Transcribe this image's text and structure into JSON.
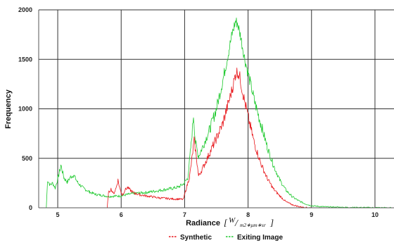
{
  "chart_data": {
    "type": "line",
    "xlabel": "Radiance",
    "xunit": {
      "W": "W",
      "denominator": "m2∗μm∗sr"
    },
    "ylabel": "Frequency",
    "xlim": [
      4.7,
      10.3
    ],
    "ylim": [
      0,
      2000
    ],
    "x_ticks": [
      5,
      6,
      7,
      8,
      9,
      10
    ],
    "y_ticks": [
      0,
      500,
      1000,
      1500,
      2000
    ],
    "grid": true,
    "legend_position": "bottom",
    "series": [
      {
        "name": "Synthetic",
        "color": "#e8161b",
        "style": "dashed",
        "points": [
          [
            5.78,
            0
          ],
          [
            5.8,
            150
          ],
          [
            5.84,
            190
          ],
          [
            5.88,
            140
          ],
          [
            5.92,
            200
          ],
          [
            5.95,
            280
          ],
          [
            5.98,
            190
          ],
          [
            6.02,
            130
          ],
          [
            6.06,
            180
          ],
          [
            6.1,
            205
          ],
          [
            6.15,
            175
          ],
          [
            6.2,
            150
          ],
          [
            6.3,
            130
          ],
          [
            6.4,
            120
          ],
          [
            6.5,
            110
          ],
          [
            6.6,
            100
          ],
          [
            6.7,
            95
          ],
          [
            6.8,
            90
          ],
          [
            6.9,
            88
          ],
          [
            6.98,
            85
          ],
          [
            7.02,
            180
          ],
          [
            7.08,
            320
          ],
          [
            7.12,
            520
          ],
          [
            7.15,
            680
          ],
          [
            7.18,
            540
          ],
          [
            7.22,
            320
          ],
          [
            7.3,
            420
          ],
          [
            7.4,
            560
          ],
          [
            7.5,
            700
          ],
          [
            7.6,
            850
          ],
          [
            7.7,
            1080
          ],
          [
            7.75,
            1200
          ],
          [
            7.8,
            1340
          ],
          [
            7.83,
            1380
          ],
          [
            7.87,
            1320
          ],
          [
            7.92,
            1150
          ],
          [
            8.0,
            920
          ],
          [
            8.1,
            650
          ],
          [
            8.2,
            450
          ],
          [
            8.3,
            300
          ],
          [
            8.4,
            190
          ],
          [
            8.5,
            120
          ],
          [
            8.6,
            60
          ],
          [
            8.7,
            30
          ],
          [
            8.8,
            12
          ],
          [
            8.9,
            4
          ],
          [
            9.0,
            0
          ]
        ]
      },
      {
        "name": "Exiting Image",
        "color": "#1ec92e",
        "style": "dashed",
        "points": [
          [
            4.82,
            0
          ],
          [
            4.84,
            280
          ],
          [
            4.88,
            230
          ],
          [
            4.92,
            250
          ],
          [
            4.96,
            200
          ],
          [
            5.02,
            340
          ],
          [
            5.05,
            430
          ],
          [
            5.1,
            300
          ],
          [
            5.15,
            260
          ],
          [
            5.2,
            310
          ],
          [
            5.25,
            330
          ],
          [
            5.32,
            250
          ],
          [
            5.4,
            200
          ],
          [
            5.5,
            160
          ],
          [
            5.6,
            135
          ],
          [
            5.7,
            125
          ],
          [
            5.8,
            115
          ],
          [
            5.9,
            118
          ],
          [
            6.0,
            120
          ],
          [
            6.1,
            135
          ],
          [
            6.2,
            145
          ],
          [
            6.3,
            150
          ],
          [
            6.4,
            155
          ],
          [
            6.5,
            165
          ],
          [
            6.6,
            175
          ],
          [
            6.7,
            185
          ],
          [
            6.8,
            195
          ],
          [
            6.9,
            210
          ],
          [
            6.98,
            240
          ],
          [
            7.05,
            300
          ],
          [
            7.1,
            620
          ],
          [
            7.14,
            940
          ],
          [
            7.17,
            660
          ],
          [
            7.22,
            520
          ],
          [
            7.3,
            640
          ],
          [
            7.4,
            800
          ],
          [
            7.5,
            1000
          ],
          [
            7.6,
            1280
          ],
          [
            7.7,
            1600
          ],
          [
            7.75,
            1760
          ],
          [
            7.8,
            1880
          ],
          [
            7.83,
            1870
          ],
          [
            7.88,
            1740
          ],
          [
            7.95,
            1500
          ],
          [
            8.0,
            1360
          ],
          [
            8.1,
            1080
          ],
          [
            8.2,
            850
          ],
          [
            8.3,
            620
          ],
          [
            8.4,
            430
          ],
          [
            8.5,
            280
          ],
          [
            8.6,
            175
          ],
          [
            8.7,
            110
          ],
          [
            8.8,
            70
          ],
          [
            8.9,
            40
          ],
          [
            9.0,
            20
          ],
          [
            9.2,
            10
          ],
          [
            9.5,
            5
          ],
          [
            10.0,
            2
          ],
          [
            10.25,
            1
          ]
        ]
      }
    ]
  }
}
